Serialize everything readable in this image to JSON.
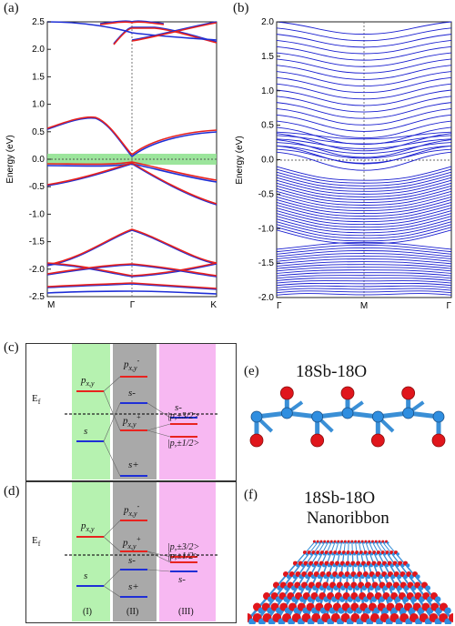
{
  "panels": {
    "a": "(a)",
    "b": "(b)",
    "c": "(c)",
    "d": "(d)",
    "e": "(e)",
    "f": "(f)"
  },
  "chart_data": [
    {
      "type": "line",
      "panel": "(a)",
      "ylabel": "Energy (eV)",
      "ylim": [
        -2.5,
        2.5
      ],
      "yticks": [
        "2.5",
        "2.0",
        "1.5",
        "1.0",
        "0.5",
        "0.0",
        "-0.5",
        "-1.0",
        "-1.5",
        "-2.0",
        "-2.5"
      ],
      "xticks": [
        "M",
        "Γ",
        "K"
      ],
      "fermi_band": [
        -0.05,
        0.05
      ],
      "colors": {
        "red": "#e8231f",
        "blue": "#1f2fd6",
        "fermi": "#8be08b"
      }
    },
    {
      "type": "line",
      "panel": "(b)",
      "ylabel": "Energy (eV)",
      "ylim": [
        -2.0,
        2.0
      ],
      "yticks": [
        "2.0",
        "1.5",
        "1.0",
        "0.5",
        "0.0",
        "-0.5",
        "-1.0",
        "-1.5",
        "-2.0"
      ],
      "xticks": [
        "Γ",
        "M",
        "Γ"
      ],
      "colors": {
        "blue": "#1a1fd0"
      }
    }
  ],
  "diagram_c": {
    "ef": "E",
    "ef_sub": "f",
    "col1": {
      "pxy": "p",
      "pxy_sub": "x,y",
      "s": "s"
    },
    "col2": {
      "pxy_minus": "p",
      "pxy_minus_sub": "x,y",
      "pxy_minus_sup": "-",
      "s_minus": "s-",
      "pxy_plus": "p",
      "pxy_plus_sub": "x,y",
      "pxy_plus_sup": "+",
      "s_plus": "s+"
    },
    "col3": {
      "s_minus": "s-",
      "j32": "|p,±3/2>",
      "j12": "|p,±1/2>"
    }
  },
  "diagram_d": {
    "ef": "E",
    "ef_sub": "f",
    "col1": {
      "pxy": "p",
      "pxy_sub": "x,y",
      "s": "s"
    },
    "col2": {
      "pxy_minus": "p",
      "pxy_minus_sub": "x,y",
      "pxy_minus_sup": "-",
      "pxy_plus": "p",
      "pxy_plus_sub": "x,y",
      "pxy_plus_sup": "+",
      "s_minus": "s-",
      "s_plus": "s+"
    },
    "col3": {
      "j32": "|p,±3/2>",
      "j12": "|p,±1/2>",
      "s_minus": "s-"
    },
    "col_labels": [
      "(I)",
      "(II)",
      "(III)"
    ]
  },
  "panel_e": {
    "title": "18Sb-18O"
  },
  "panel_f": {
    "title1": "18Sb-18O",
    "title2": "Nanoribbon"
  }
}
